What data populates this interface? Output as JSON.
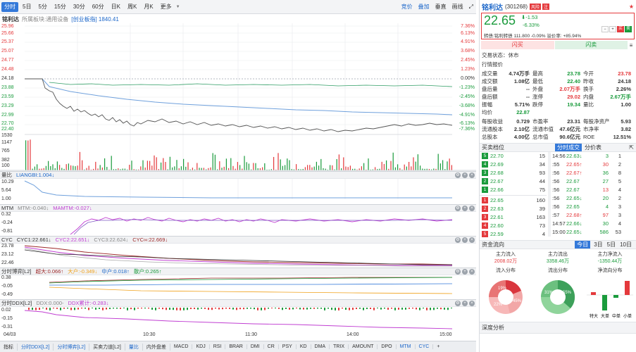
{
  "toolbar": {
    "items": [
      "分时",
      "5日",
      "5分",
      "15分",
      "30分",
      "60分",
      "日K",
      "周K",
      "月K",
      "更多"
    ],
    "right": [
      "竞价",
      "叠加",
      "垂直",
      "画线"
    ]
  },
  "header": {
    "name": "铭利达",
    "industry_label": "所属板块:通用设备",
    "index_label": "[创业板指] 1840.41"
  },
  "price_axis": {
    "left": [
      "25.96",
      "25.66",
      "25.37",
      "25.07",
      "24.77",
      "24.48",
      "24.18",
      "23.88",
      "23.59",
      "23.29",
      "22.99",
      "22.70",
      "22.40"
    ],
    "right": [
      "7.36%",
      "6.13%",
      "4.91%",
      "3.68%",
      "2.45%",
      "1.23%",
      "0.00%",
      "-1.23%",
      "-2.45%",
      "-3.68%",
      "-4.91%",
      "-6.13%",
      "-7.36%"
    ]
  },
  "volume_axis": [
    "1530",
    "1147",
    "765",
    "382",
    "100"
  ],
  "panels": {
    "liangbi": {
      "title": "量比",
      "lines": [
        "LIANGBI:1.004↓"
      ],
      "axis": [
        "10.29",
        "5.64",
        "1.00"
      ]
    },
    "mtm": {
      "title": "MTM",
      "lines": [
        "MTM:-0.040↓",
        "MAMTM:-0.027↓"
      ],
      "axis": [
        "0.32",
        "-0.24",
        "-0.81"
      ]
    },
    "cyc": {
      "title": "CYC",
      "lines": [
        "CYC1:22.661↓",
        "CYC2:22.651↓",
        "CYC3:22.624↓",
        "CYC∞:22.669↓"
      ],
      "axis": [
        "23.78",
        "23.12",
        "22.46"
      ]
    },
    "fsbo": {
      "title": "分时博弈[L2]",
      "lines": [
        "超大:0.066↑",
        "大户:-0.349↓",
        "中户:0.018↑",
        "散户:0.265↑"
      ],
      "axis": [
        "0.38",
        "-0.05",
        "-0.49"
      ]
    },
    "ddx": {
      "title": "分时DDX[L2]",
      "lines": [
        "DDX:0.000-",
        "DDX累计:-0.283↓"
      ],
      "axis": [
        "0.02",
        "-0.15",
        "-0.31"
      ]
    }
  },
  "time_axis": [
    "04/03",
    "10:30",
    "11:30",
    "14:00",
    "15:00"
  ],
  "bottom_tabs": [
    "指标",
    "分时DDX[L2]",
    "分时博弈[L2]",
    "买卖力道[L2]",
    "量比",
    "内外盘差",
    "MACD",
    "KDJ",
    "RSI",
    "BRAR",
    "DMI",
    "CR",
    "PSY",
    "KD",
    "DMA",
    "TRIX",
    "AMOUNT",
    "DPO",
    "MTM",
    "CYC"
  ],
  "quote": {
    "name": "铭利达",
    "code": "(301268)",
    "badge1": "风险",
    "badge2": "注",
    "price": "22.65",
    "change": "-1.53",
    "pct": "-6.33%",
    "cb_line": "转债:铭利转债 111.800 -0.09% 溢价率: +85.94%",
    "buy_btn": "闪买",
    "sell_btn": "闪卖",
    "status": "交易状态：休市",
    "quote_title": "行情报价"
  },
  "stats": [
    [
      "成交量",
      "4.74万手",
      "最高",
      "23.78",
      "今开",
      "23.78"
    ],
    [
      "成交额",
      "1.08亿",
      "最低",
      "22.40",
      "昨收",
      "24.18"
    ],
    [
      "盘后量",
      "--",
      "外盘",
      "2.07万手",
      "换手",
      "2.26%"
    ],
    [
      "盘后额",
      "--",
      "涨停",
      "29.02",
      "内盘",
      "2.67万手"
    ],
    [
      "振幅",
      "5.71%",
      "跌停",
      "19.34",
      "量比",
      "1.00"
    ],
    [
      "均价",
      "22.87",
      "",
      "",
      "",
      ""
    ]
  ],
  "fund": [
    [
      "每股收益",
      "0.729",
      "市盈率",
      "23.31",
      "每股净资产",
      "5.93"
    ],
    [
      "流通股本",
      "2.10亿",
      "流通市值",
      "47.6亿元",
      "市净率",
      "3.82"
    ],
    [
      "总股本",
      "4.00亿",
      "总市值",
      "90.6亿元",
      "ROE",
      "12.51%"
    ]
  ],
  "orderbook": {
    "title": "买卖档位",
    "tab1": "分时成交",
    "tab2": "分价表",
    "asks": [
      [
        "5",
        "22.70",
        "15"
      ],
      [
        "4",
        "22.69",
        "34"
      ],
      [
        "3",
        "22.68",
        "93"
      ],
      [
        "2",
        "22.67",
        "44"
      ],
      [
        "1",
        "22.66",
        "75"
      ]
    ],
    "bids": [
      [
        "1",
        "22.65",
        "160"
      ],
      [
        "2",
        "22.63",
        "39"
      ],
      [
        "3",
        "22.61",
        "163"
      ],
      [
        "4",
        "22.60",
        "73"
      ],
      [
        "5",
        "22.59",
        "4"
      ]
    ],
    "ticks": [
      [
        "14:56",
        "22.63↓",
        "3",
        "1"
      ],
      [
        ":55",
        "22.65↑",
        "30",
        "2"
      ],
      [
        ":56",
        "22.67↑",
        "36",
        "8"
      ],
      [
        ":56",
        "22.67",
        "27",
        "5"
      ],
      [
        ":56",
        "22.67",
        "13",
        "4"
      ],
      [
        ":56",
        "22.65↓",
        "20",
        "2"
      ],
      [
        ":56",
        "22.65",
        "4",
        "3"
      ],
      [
        ":57",
        "22.68↑",
        "97",
        "3"
      ],
      [
        "14:57",
        "22.66↓",
        "30",
        "4"
      ],
      [
        "15:00",
        "22.65↓",
        "586",
        "53"
      ]
    ]
  },
  "flow": {
    "title": "资金流向",
    "tabs": [
      "今日",
      "3日",
      "5日",
      "10日"
    ],
    "col1": "主力流入",
    "col1v": "2008.02万",
    "col2": "主力流出",
    "col2v": "3358.46万",
    "col3": "主力净流入",
    "col3v": "-1350.44万",
    "pie1": "流入分布",
    "pie2": "流出分布",
    "bars": "净流向分布",
    "barlabels": [
      "特大",
      "大单",
      "中单",
      "小单"
    ],
    "pie1pct": [
      "19%",
      "22%",
      "45%"
    ],
    "pie2pct": [
      "31%",
      "55%"
    ]
  },
  "depth": "深度分析",
  "colors": {
    "up": "#e4393c",
    "down": "#1a9b3c",
    "accent": "#3479d9"
  }
}
